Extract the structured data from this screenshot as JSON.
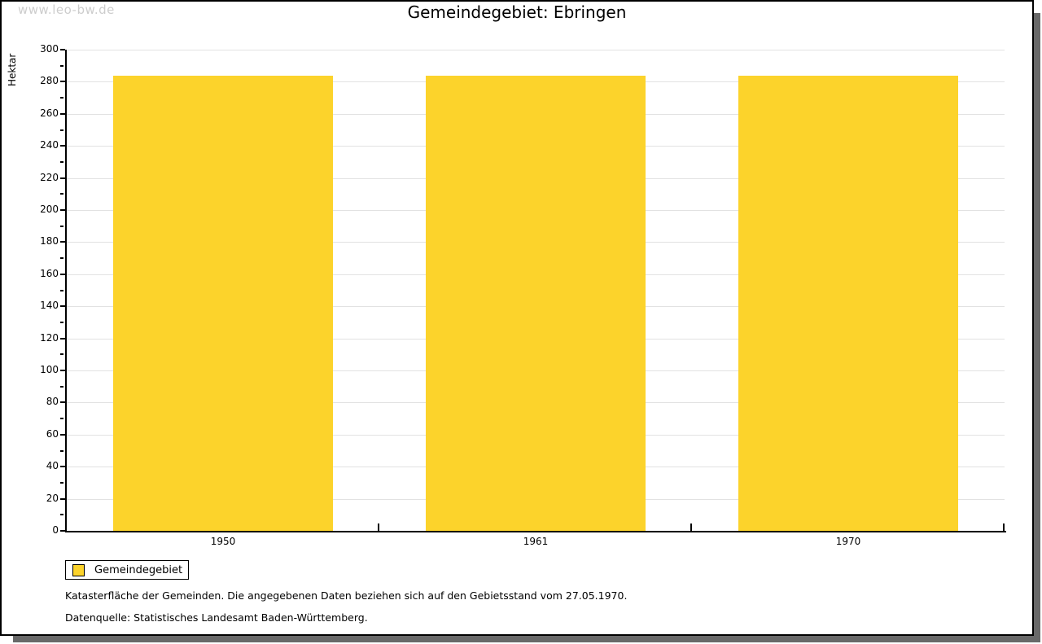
{
  "watermark": "www.leo-bw.de",
  "header": {
    "title": "Gemeindegebiet: Ebringen"
  },
  "chart_data": {
    "type": "bar",
    "title": "Gemeindegebiet: Ebringen",
    "categories": [
      "1950",
      "1961",
      "1970"
    ],
    "series": [
      {
        "name": "Gemeindegebiet",
        "values": [
          284,
          284,
          284
        ]
      }
    ],
    "xlabel": "",
    "ylabel": "Hektar",
    "ylim": [
      0,
      300
    ],
    "ytick_step": 20,
    "yminor_step": 10,
    "grid": true,
    "legend_position": "bottom-left",
    "bar_color": "#fcd32b",
    "gridline_color": "#e2e2e2"
  },
  "legend": {
    "items": [
      {
        "label": "Gemeindegebiet",
        "color": "#fcd32b"
      }
    ]
  },
  "footer": {
    "line1": "Katasterfläche der Gemeinden. Die angegebenen Daten beziehen sich auf den Gebietsstand vom 27.05.1970.",
    "line2": "Datenquelle: Statistisches Landesamt Baden-Württemberg."
  },
  "colors": {
    "accent": "#fcd32b",
    "axis": "#000000",
    "grid": "#e2e2e2",
    "watermark": "#cdcdcd",
    "frame_shadow": "#696969"
  }
}
